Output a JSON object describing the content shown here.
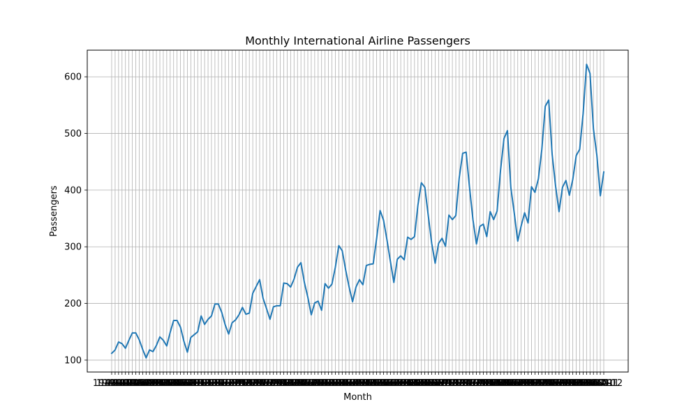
{
  "chart_data": {
    "type": "line",
    "title": "Monthly International Airline Passengers",
    "xlabel": "Month",
    "ylabel": "Passengers",
    "grid": true,
    "ylim": [
      79,
      647
    ],
    "y_ticks": [
      100,
      200,
      300,
      400,
      500,
      600
    ],
    "line_color": "#1f77b4",
    "x": [
      "1949-01",
      "1949-02",
      "1949-03",
      "1949-04",
      "1949-05",
      "1949-06",
      "1949-07",
      "1949-08",
      "1949-09",
      "1949-10",
      "1949-11",
      "1949-12",
      "1950-01",
      "1950-02",
      "1950-03",
      "1950-04",
      "1950-05",
      "1950-06",
      "1950-07",
      "1950-08",
      "1950-09",
      "1950-10",
      "1950-11",
      "1950-12",
      "1951-01",
      "1951-02",
      "1951-03",
      "1951-04",
      "1951-05",
      "1951-06",
      "1951-07",
      "1951-08",
      "1951-09",
      "1951-10",
      "1951-11",
      "1951-12",
      "1952-01",
      "1952-02",
      "1952-03",
      "1952-04",
      "1952-05",
      "1952-06",
      "1952-07",
      "1952-08",
      "1952-09",
      "1952-10",
      "1952-11",
      "1952-12",
      "1953-01",
      "1953-02",
      "1953-03",
      "1953-04",
      "1953-05",
      "1953-06",
      "1953-07",
      "1953-08",
      "1953-09",
      "1953-10",
      "1953-11",
      "1953-12",
      "1954-01",
      "1954-02",
      "1954-03",
      "1954-04",
      "1954-05",
      "1954-06",
      "1954-07",
      "1954-08",
      "1954-09",
      "1954-10",
      "1954-11",
      "1954-12",
      "1955-01",
      "1955-02",
      "1955-03",
      "1955-04",
      "1955-05",
      "1955-06",
      "1955-07",
      "1955-08",
      "1955-09",
      "1955-10",
      "1955-11",
      "1955-12",
      "1956-01",
      "1956-02",
      "1956-03",
      "1956-04",
      "1956-05",
      "1956-06",
      "1956-07",
      "1956-08",
      "1956-09",
      "1956-10",
      "1956-11",
      "1956-12",
      "1957-01",
      "1957-02",
      "1957-03",
      "1957-04",
      "1957-05",
      "1957-06",
      "1957-07",
      "1957-08",
      "1957-09",
      "1957-10",
      "1957-11",
      "1957-12",
      "1958-01",
      "1958-02",
      "1958-03",
      "1958-04",
      "1958-05",
      "1958-06",
      "1958-07",
      "1958-08",
      "1958-09",
      "1958-10",
      "1958-11",
      "1958-12",
      "1959-01",
      "1959-02",
      "1959-03",
      "1959-04",
      "1959-05",
      "1959-06",
      "1959-07",
      "1959-08",
      "1959-09",
      "1959-10",
      "1959-11",
      "1959-12",
      "1960-01",
      "1960-02",
      "1960-03",
      "1960-04",
      "1960-05",
      "1960-06",
      "1960-07",
      "1960-08",
      "1960-09",
      "1960-10",
      "1960-11",
      "1960-12"
    ],
    "series": [
      {
        "values": [
          112,
          118,
          132,
          129,
          121,
          135,
          148,
          148,
          136,
          119,
          104,
          118,
          115,
          126,
          141,
          135,
          125,
          149,
          170,
          170,
          158,
          133,
          114,
          140,
          145,
          150,
          178,
          163,
          172,
          178,
          199,
          199,
          184,
          162,
          146,
          166,
          171,
          180,
          193,
          181,
          183,
          218,
          230,
          242,
          209,
          191,
          172,
          194,
          196,
          196,
          236,
          235,
          229,
          243,
          264,
          272,
          237,
          211,
          180,
          201,
          204,
          188,
          235,
          227,
          234,
          264,
          302,
          293,
          259,
          229,
          203,
          229,
          242,
          233,
          267,
          269,
          270,
          315,
          364,
          347,
          312,
          274,
          237,
          278,
          284,
          277,
          317,
          313,
          318,
          374,
          413,
          405,
          355,
          306,
          271,
          306,
          315,
          301,
          356,
          348,
          355,
          422,
          465,
          467,
          404,
          347,
          305,
          336,
          340,
          318,
          362,
          348,
          363,
          435,
          491,
          505,
          404,
          359,
          310,
          337,
          360,
          342,
          406,
          396,
          420,
          472,
          548,
          559,
          463,
          407,
          362,
          405,
          417,
          391,
          419,
          461,
          472,
          535,
          622,
          606,
          508,
          461,
          390,
          432
        ]
      }
    ]
  }
}
